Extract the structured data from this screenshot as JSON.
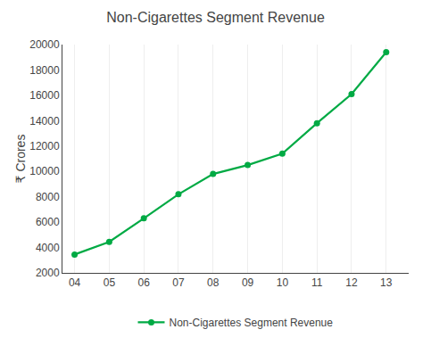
{
  "chart_data": {
    "type": "line",
    "title": "Non-Cigarettes Segment Revenue",
    "ylabel": "₹ Crores",
    "x": [
      4,
      5,
      6,
      7,
      8,
      9,
      10,
      11,
      12,
      13
    ],
    "series": [
      {
        "name": "Non-Cigarettes Segment Revenue",
        "color": "#00aa44",
        "marker": "circle",
        "values": [
          3450,
          4450,
          6300,
          8200,
          9800,
          10500,
          11400,
          13800,
          16100,
          19400
        ]
      }
    ],
    "xlim": [
      3.65,
      13.65
    ],
    "xticks": [
      {
        "value": 4,
        "label": "04"
      },
      {
        "value": 5,
        "label": "05"
      },
      {
        "value": 6,
        "label": "06"
      },
      {
        "value": 7,
        "label": "07"
      },
      {
        "value": 8,
        "label": "08"
      },
      {
        "value": 9,
        "label": "09"
      },
      {
        "value": 10,
        "label": "10"
      },
      {
        "value": 11,
        "label": "11"
      },
      {
        "value": 12,
        "label": "12"
      },
      {
        "value": 13,
        "label": "13"
      }
    ],
    "ylim": [
      2000,
      20000
    ],
    "yticks": [
      2000,
      4000,
      6000,
      8000,
      10000,
      12000,
      14000,
      16000,
      18000,
      20000
    ],
    "grid": "x",
    "legend": "bottom"
  }
}
